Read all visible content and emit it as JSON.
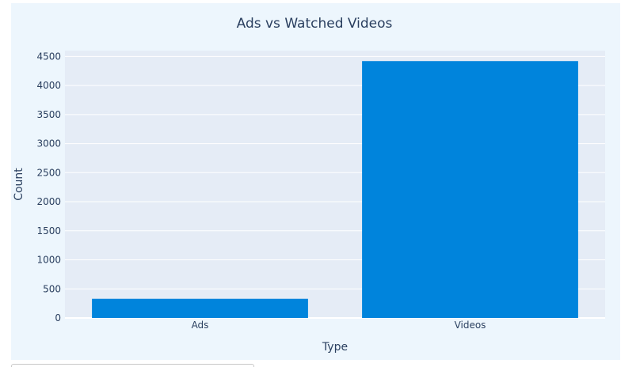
{
  "chart_data": {
    "type": "bar",
    "title": "Ads vs Watched Videos",
    "xlabel": "Type",
    "ylabel": "Count",
    "categories": [
      "Ads",
      "Videos"
    ],
    "values": [
      330,
      4420
    ],
    "ylim": [
      0,
      4600
    ],
    "yticks": [
      0,
      500,
      1000,
      1500,
      2000,
      2500,
      3000,
      3500,
      4000,
      4500
    ],
    "grid": true,
    "legend": "none",
    "colors": {
      "bar": "#0084dc",
      "plot_background": "#e5ecf6",
      "paper_background": "#edf6fd",
      "grid": "#ffffff",
      "text": "#2a3f5f"
    }
  }
}
